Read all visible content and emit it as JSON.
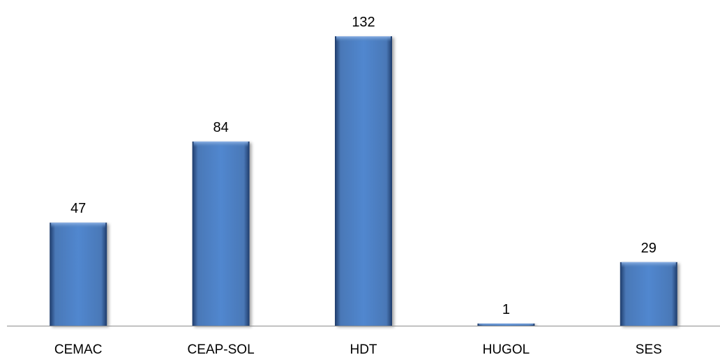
{
  "chart_data": {
    "type": "bar",
    "categories": [
      "CEMAC",
      "CEAP-SOL",
      "HDT",
      "HUGOL",
      "SES"
    ],
    "values": [
      47,
      84,
      132,
      1,
      29
    ],
    "title": "",
    "xlabel": "",
    "ylabel": "",
    "ylim": [
      0,
      132
    ],
    "grid": false,
    "data_labels": true,
    "bar_color": "#4f81bd"
  }
}
